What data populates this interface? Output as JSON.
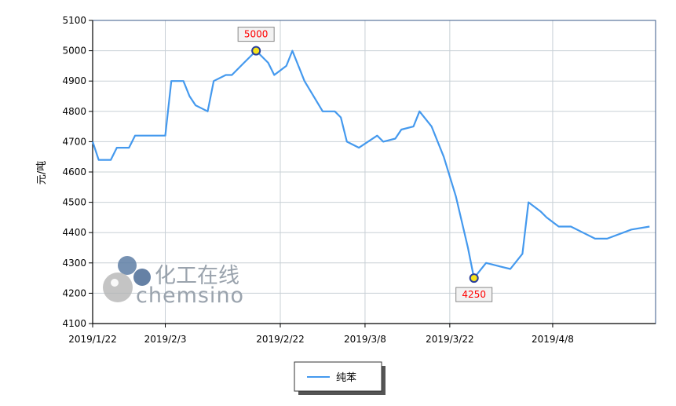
{
  "chart_data": {
    "type": "line",
    "ylabel": "元/吨",
    "ylim": [
      4100,
      5100
    ],
    "yticks": [
      4100,
      4200,
      4300,
      4400,
      4500,
      4600,
      4700,
      4800,
      4900,
      5000,
      5100
    ],
    "xlim": [
      "2019-01-22",
      "2019-04-25"
    ],
    "xticks": [
      {
        "date": "2019-01-22",
        "label": "2019/1/22"
      },
      {
        "date": "2019-02-03",
        "label": "2019/2/3"
      },
      {
        "date": "2019-02-22",
        "label": "2019/2/22"
      },
      {
        "date": "2019-03-08",
        "label": "2019/3/8"
      },
      {
        "date": "2019-03-22",
        "label": "2019/3/22"
      },
      {
        "date": "2019-04-08",
        "label": "2019/4/8"
      }
    ],
    "grid": true,
    "legend_position": "bottom-center",
    "series": [
      {
        "name": "纯苯",
        "color": "#4499ee",
        "points": [
          [
            "2019-01-22",
            4700
          ],
          [
            "2019-01-23",
            4640
          ],
          [
            "2019-01-25",
            4640
          ],
          [
            "2019-01-26",
            4680
          ],
          [
            "2019-01-28",
            4680
          ],
          [
            "2019-01-29",
            4720
          ],
          [
            "2019-01-31",
            4720
          ],
          [
            "2019-02-03",
            4720
          ],
          [
            "2019-02-04",
            4900
          ],
          [
            "2019-02-06",
            4900
          ],
          [
            "2019-02-07",
            4850
          ],
          [
            "2019-02-08",
            4820
          ],
          [
            "2019-02-10",
            4800
          ],
          [
            "2019-02-11",
            4900
          ],
          [
            "2019-02-13",
            4920
          ],
          [
            "2019-02-14",
            4920
          ],
          [
            "2019-02-16",
            4960
          ],
          [
            "2019-02-18",
            5000
          ],
          [
            "2019-02-20",
            4960
          ],
          [
            "2019-02-21",
            4920
          ],
          [
            "2019-02-23",
            4950
          ],
          [
            "2019-02-24",
            5000
          ],
          [
            "2019-02-26",
            4900
          ],
          [
            "2019-03-01",
            4800
          ],
          [
            "2019-03-03",
            4800
          ],
          [
            "2019-03-04",
            4780
          ],
          [
            "2019-03-05",
            4700
          ],
          [
            "2019-03-07",
            4680
          ],
          [
            "2019-03-10",
            4720
          ],
          [
            "2019-03-11",
            4700
          ],
          [
            "2019-03-13",
            4710
          ],
          [
            "2019-03-14",
            4740
          ],
          [
            "2019-03-16",
            4750
          ],
          [
            "2019-03-17",
            4800
          ],
          [
            "2019-03-19",
            4750
          ],
          [
            "2019-03-21",
            4650
          ],
          [
            "2019-03-23",
            4520
          ],
          [
            "2019-03-25",
            4350
          ],
          [
            "2019-03-26",
            4250
          ],
          [
            "2019-03-28",
            4300
          ],
          [
            "2019-03-30",
            4290
          ],
          [
            "2019-04-01",
            4280
          ],
          [
            "2019-04-03",
            4330
          ],
          [
            "2019-04-04",
            4500
          ],
          [
            "2019-04-06",
            4470
          ],
          [
            "2019-04-07",
            4450
          ],
          [
            "2019-04-09",
            4420
          ],
          [
            "2019-04-11",
            4420
          ],
          [
            "2019-04-13",
            4400
          ],
          [
            "2019-04-15",
            4380
          ],
          [
            "2019-04-17",
            4380
          ],
          [
            "2019-04-21",
            4410
          ],
          [
            "2019-04-24",
            4420
          ]
        ]
      }
    ],
    "annotations": [
      {
        "date": "2019-02-18",
        "value": 5000,
        "label": "5000",
        "kind": "max"
      },
      {
        "date": "2019-03-26",
        "value": 4250,
        "label": "4250",
        "kind": "min"
      }
    ]
  },
  "watermark": {
    "text_cn": "化工在线",
    "text_en": "chemsino"
  }
}
